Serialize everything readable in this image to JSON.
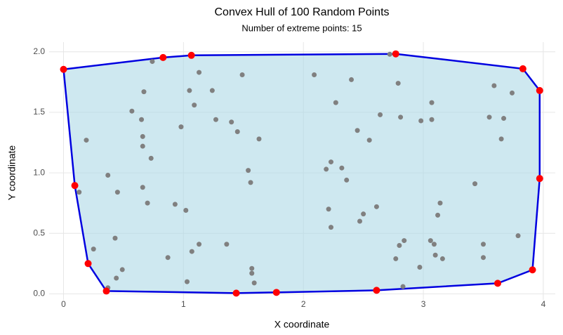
{
  "chart_data": {
    "type": "scatter",
    "title": "Convex Hull of 100 Random Points",
    "subtitle": "Number of extreme points: 15",
    "x_label": "X coordinate",
    "y_label": "Y coordinate",
    "xlim": [
      -0.12,
      4.1
    ],
    "ylim": [
      -0.05,
      2.08
    ],
    "xticks": [
      0,
      1,
      2,
      3,
      4
    ],
    "yticks": [
      {
        "value": 0,
        "label": "0.0"
      },
      {
        "value": 0.5,
        "label": "0.5"
      },
      {
        "value": 1,
        "label": "1.0"
      },
      {
        "value": 1.5,
        "label": "1.5"
      },
      {
        "value": 2,
        "label": "2.0"
      }
    ],
    "grid": true,
    "series": [
      {
        "color": "#808080",
        "x": [
          0.74,
          2.72,
          1.13,
          2.09,
          1.49,
          2.4,
          2.79,
          1.05,
          1.24,
          0.67,
          3.59,
          3.74,
          3.07,
          1.09,
          2.27,
          0.57,
          0.65,
          1.27,
          1.4,
          2.64,
          2.81,
          3.55,
          3.67,
          2.98,
          3.07,
          0.98,
          1.45,
          2.45,
          0.66,
          3.65,
          0.19,
          1.63,
          2.55,
          0.66,
          0.73,
          2.23,
          2.19,
          2.32,
          1.54,
          0.37,
          2.36,
          1.56,
          3.43,
          0.66,
          0.45,
          0.13,
          0.7,
          0.93,
          1.02,
          2.61,
          2.21,
          3.14,
          2.5,
          3.12,
          2.47,
          2.23,
          3.79,
          0.43,
          2.84,
          3.06,
          3.5,
          3.09,
          1.13,
          1.36,
          2.8,
          1.07,
          0.25,
          3.1,
          3.5,
          0.87,
          2.77,
          3.16,
          0.49,
          2.97,
          1.57,
          1.57,
          0.44,
          1.03,
          1.59,
          0.37,
          2.83
        ],
        "values": [
          1.92,
          1.98,
          1.83,
          1.81,
          1.81,
          1.77,
          1.74,
          1.68,
          1.68,
          1.67,
          1.72,
          1.66,
          1.58,
          1.56,
          1.58,
          1.51,
          1.44,
          1.44,
          1.42,
          1.48,
          1.46,
          1.46,
          1.45,
          1.43,
          1.44,
          1.38,
          1.34,
          1.35,
          1.3,
          1.28,
          1.27,
          1.28,
          1.27,
          1.22,
          1.12,
          1.09,
          1.03,
          1.04,
          1.02,
          0.98,
          0.94,
          0.92,
          0.91,
          0.88,
          0.84,
          0.84,
          0.75,
          0.74,
          0.69,
          0.72,
          0.7,
          0.75,
          0.66,
          0.65,
          0.6,
          0.55,
          0.48,
          0.46,
          0.44,
          0.44,
          0.41,
          0.41,
          0.41,
          0.41,
          0.4,
          0.35,
          0.37,
          0.32,
          0.3,
          0.3,
          0.29,
          0.29,
          0.2,
          0.22,
          0.21,
          0.17,
          0.13,
          0.1,
          0.09,
          0.05,
          0.06
        ]
      },
      {
        "color": "#ff0000",
        "line_color": "#0000e0",
        "fill_color": "#add8e6",
        "x": [
          0.0,
          0.83,
          1.066,
          2.77,
          3.83,
          3.97,
          3.97,
          3.91,
          3.62,
          2.61,
          1.775,
          1.44,
          0.357,
          0.205,
          0.094
        ],
        "values": [
          1.855,
          1.953,
          1.971,
          1.983,
          1.86,
          1.68,
          0.953,
          0.198,
          0.087,
          0.029,
          0.012,
          0.006,
          0.023,
          0.25,
          0.895
        ]
      }
    ]
  }
}
